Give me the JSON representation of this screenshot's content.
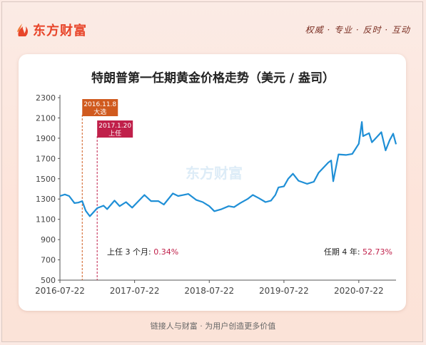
{
  "brand": {
    "logo_text": "东方财富",
    "slogan": "权威 · 专业 · 反时 · 互动",
    "watermark": "东方财富"
  },
  "footer": "链接人与财富 · 为用户创造更多价值",
  "colors": {
    "line": "#1f8fd6",
    "accent": "#e8452a",
    "marker1": "#d05a1e",
    "marker2": "#c0204a",
    "pct": "#c0204a"
  },
  "chart_data": {
    "type": "line",
    "title": "特朗普第一任期黄金价格走势（美元 / 盎司）",
    "ylim": [
      500,
      2300
    ],
    "yticks": [
      500,
      700,
      900,
      1100,
      1300,
      1500,
      1700,
      1900,
      2100,
      2300
    ],
    "xlim": [
      "2016-07-22",
      "2021-01-20"
    ],
    "xticks": [
      "2016-07-22",
      "2017-07-22",
      "2018-07-22",
      "2019-07-22",
      "2020-07-22"
    ],
    "series": [
      {
        "x": [
          "2016-07-22",
          "2016-08-15",
          "2016-09-05",
          "2016-10-01",
          "2016-10-20",
          "2016-11-08",
          "2016-11-25",
          "2016-12-15",
          "2017-01-20",
          "2017-02-20",
          "2017-03-10",
          "2017-04-15",
          "2017-05-10",
          "2017-06-10",
          "2017-07-10",
          "2017-08-15",
          "2017-09-08",
          "2017-10-10",
          "2017-11-15",
          "2017-12-12",
          "2018-01-25",
          "2018-02-20",
          "2018-04-11",
          "2018-05-20",
          "2018-06-20",
          "2018-07-22",
          "2018-08-16",
          "2018-09-20",
          "2018-10-25",
          "2018-11-20",
          "2018-12-20",
          "2019-01-25",
          "2019-02-20",
          "2019-03-20",
          "2019-04-23",
          "2019-05-20",
          "2019-06-10",
          "2019-06-25",
          "2019-07-22",
          "2019-08-12",
          "2019-09-04",
          "2019-10-01",
          "2019-11-12",
          "2019-12-15",
          "2020-01-08",
          "2020-02-24",
          "2020-03-09",
          "2020-03-19",
          "2020-04-14",
          "2020-05-20",
          "2020-06-20",
          "2020-07-22",
          "2020-08-06",
          "2020-08-12",
          "2020-09-10",
          "2020-09-24",
          "2020-10-15",
          "2020-11-09",
          "2020-11-30",
          "2020-12-20",
          "2021-01-06",
          "2021-01-20"
        ],
        "values": [
          1330,
          1345,
          1330,
          1260,
          1265,
          1280,
          1185,
          1130,
          1210,
          1235,
          1200,
          1285,
          1230,
          1270,
          1215,
          1290,
          1340,
          1280,
          1280,
          1245,
          1355,
          1330,
          1350,
          1290,
          1270,
          1230,
          1180,
          1200,
          1230,
          1220,
          1260,
          1300,
          1340,
          1310,
          1270,
          1285,
          1340,
          1415,
          1425,
          1500,
          1550,
          1480,
          1450,
          1470,
          1560,
          1660,
          1680,
          1475,
          1740,
          1735,
          1745,
          1845,
          2060,
          1920,
          1950,
          1860,
          1905,
          1960,
          1780,
          1880,
          1945,
          1840
        ]
      }
    ],
    "markers": [
      {
        "date": "2016-11-08",
        "label_line1": "2016.11.8",
        "label_line2": "大选"
      },
      {
        "date": "2017-01-20",
        "label_line1": "2017.1.20",
        "label_line2": "上任"
      }
    ],
    "annotations": [
      {
        "label": "上任 3 个月: ",
        "value": "0.34%"
      },
      {
        "label": "任期 4 年: ",
        "value": "52.73%"
      }
    ]
  }
}
